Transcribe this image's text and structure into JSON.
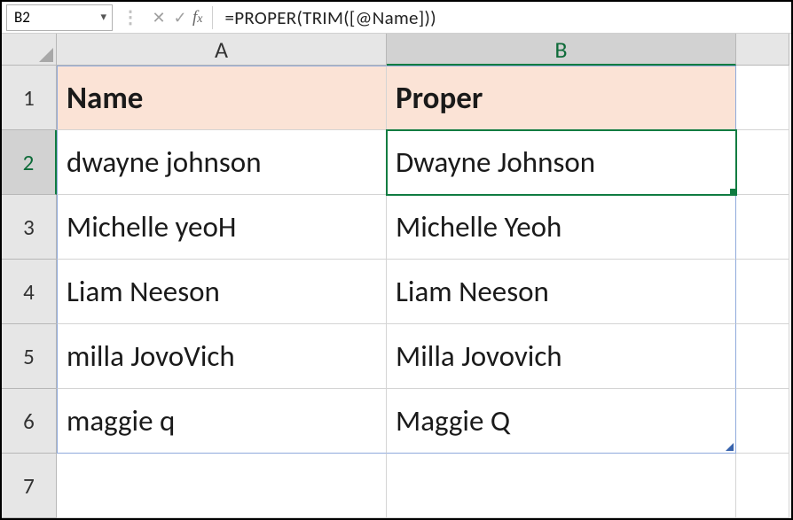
{
  "formula_bar": {
    "name_box": "B2",
    "formula": "=PROPER(TRIM([@Name]))"
  },
  "columns": [
    "A",
    "B"
  ],
  "row_numbers": [
    "1",
    "2",
    "3",
    "4",
    "5",
    "6",
    "7"
  ],
  "active_cell": {
    "row": 2,
    "col": "B"
  },
  "table": {
    "header_bg": "#fbe3d6",
    "headers": [
      "Name",
      "Proper"
    ],
    "rows": [
      [
        "dwayne johnson",
        "Dwayne Johnson"
      ],
      [
        "Michelle yeoH",
        "Michelle Yeoh"
      ],
      [
        "Liam Neeson",
        "Liam Neeson"
      ],
      [
        " milla JovoVich",
        "Milla Jovovich"
      ],
      [
        "maggie q",
        "Maggie Q"
      ]
    ]
  },
  "colors": {
    "grid_border": "#d4d4d4",
    "header_bg": "#e6e6e6",
    "selection_green": "#107c41",
    "table_border": "#8faadc"
  }
}
